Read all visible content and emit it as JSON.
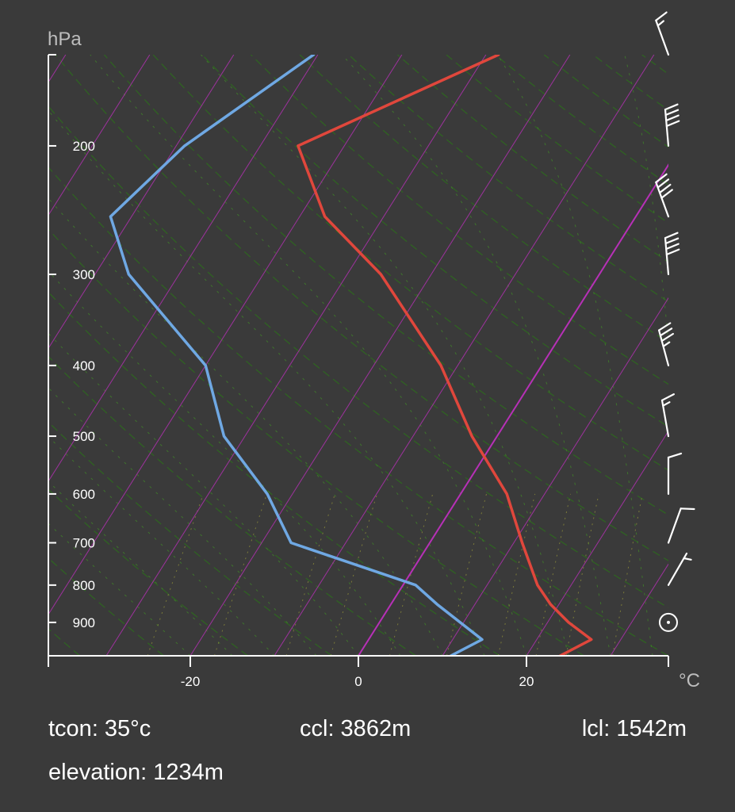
{
  "chart_data": {
    "type": "line",
    "title": "",
    "y_unit": "hPa",
    "x_unit": "°C",
    "y_scale": "log",
    "ylim": [
      1000,
      150
    ],
    "xlim": [
      -37,
      37
    ],
    "y_ticks": [
      200,
      300,
      400,
      500,
      600,
      700,
      800,
      900
    ],
    "x_ticks": [
      -20,
      0,
      20
    ],
    "series": [
      {
        "role": "temperature",
        "color": "#e0473c",
        "points": [
          {
            "p": 150,
            "t": -28.5
          },
          {
            "p": 200,
            "t": -45.5
          },
          {
            "p": 250,
            "t": -37.0
          },
          {
            "p": 300,
            "t": -26.0
          },
          {
            "p": 400,
            "t": -12.0
          },
          {
            "p": 500,
            "t": -3.0
          },
          {
            "p": 600,
            "t": 5.5
          },
          {
            "p": 700,
            "t": 11.0
          },
          {
            "p": 800,
            "t": 16.0
          },
          {
            "p": 850,
            "t": 19.0
          },
          {
            "p": 900,
            "t": 22.5
          },
          {
            "p": 950,
            "t": 26.5
          },
          {
            "p": 1000,
            "t": 24.0
          }
        ]
      },
      {
        "role": "dewpoint",
        "color": "#6fa8e3",
        "points": [
          {
            "p": 150,
            "t": -50.5
          },
          {
            "p": 200,
            "t": -59.0
          },
          {
            "p": 250,
            "t": -62.5
          },
          {
            "p": 300,
            "t": -56.0
          },
          {
            "p": 400,
            "t": -40.0
          },
          {
            "p": 500,
            "t": -32.5
          },
          {
            "p": 600,
            "t": -23.0
          },
          {
            "p": 700,
            "t": -16.5
          },
          {
            "p": 800,
            "t": 1.5
          },
          {
            "p": 850,
            "t": 5.5
          },
          {
            "p": 950,
            "t": 13.5
          },
          {
            "p": 1000,
            "t": 11.0
          }
        ]
      }
    ],
    "wind_barbs": [
      {
        "p": 150,
        "speed_kt": 15,
        "from_deg": 340
      },
      {
        "p": 200,
        "speed_kt": 40,
        "from_deg": 355
      },
      {
        "p": 250,
        "speed_kt": 40,
        "from_deg": 340
      },
      {
        "p": 300,
        "speed_kt": 40,
        "from_deg": 355
      },
      {
        "p": 400,
        "speed_kt": 35,
        "from_deg": 345
      },
      {
        "p": 500,
        "speed_kt": 15,
        "from_deg": 350
      },
      {
        "p": 600,
        "speed_kt": 10,
        "from_deg": 0
      },
      {
        "p": 700,
        "speed_kt": 10,
        "from_deg": 20
      },
      {
        "p": 800,
        "speed_kt": 5,
        "from_deg": 30
      },
      {
        "p": 900,
        "speed_kt": 0,
        "from_deg": 0
      }
    ],
    "background": {
      "isotherm_color": "#b730b7",
      "dry_adiabat_color": "#2e6a1e",
      "moist_adiabat_color": "#3f7a2b",
      "mixing_ratio_color": "#8a8a3a"
    },
    "axis_color": "#ffffff"
  },
  "stats": {
    "tcon": "tcon: 35°c",
    "ccl": "ccl: 3862m",
    "lcl": "lcl: 1542m",
    "elevation": "elevation: 1234m"
  }
}
